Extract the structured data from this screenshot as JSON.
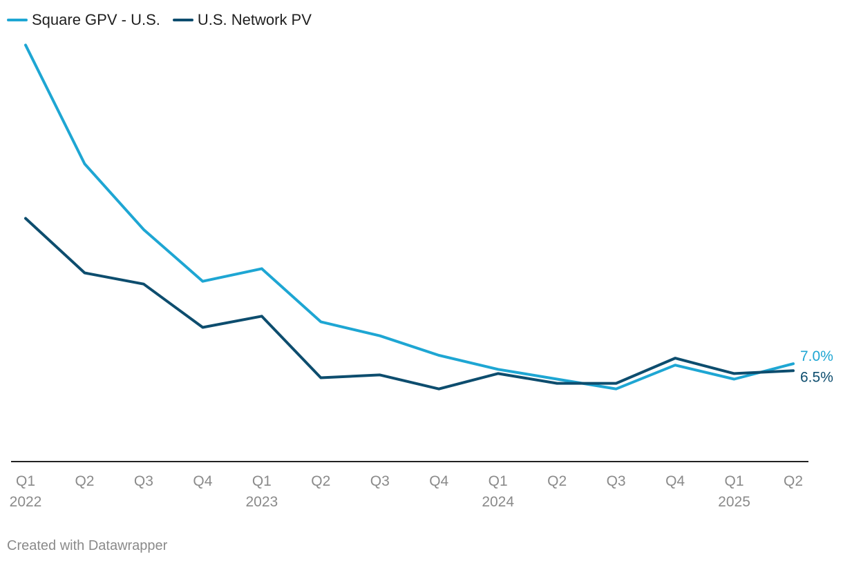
{
  "footer": {
    "text": "Created with Datawrapper"
  },
  "chart_data": {
    "type": "line",
    "title": "",
    "xlabel": "",
    "ylabel": "",
    "grid": false,
    "legend_position": "top-left",
    "categories": [
      "Q1",
      "Q2",
      "Q3",
      "Q4",
      "Q1",
      "Q2",
      "Q3",
      "Q4",
      "Q1",
      "Q2",
      "Q3",
      "Q4",
      "Q1",
      "Q2"
    ],
    "year_labels": [
      "2022",
      "",
      "",
      "",
      "2023",
      "",
      "",
      "",
      "2024",
      "",
      "",
      "",
      "2025",
      ""
    ],
    "series": [
      {
        "name": "Square GPV - U.S.",
        "color": "#1ea6d3",
        "values": [
          29.8,
          21.3,
          16.6,
          12.9,
          13.8,
          10.0,
          9.0,
          7.6,
          6.6,
          5.9,
          5.2,
          6.9,
          5.9,
          7.0
        ],
        "end_label": "7.0%"
      },
      {
        "name": "U.S. Network PV",
        "color": "#0d4d6e",
        "values": [
          17.4,
          13.5,
          12.7,
          9.6,
          10.4,
          6.0,
          6.2,
          5.2,
          6.3,
          5.6,
          5.6,
          7.4,
          6.3,
          6.5
        ],
        "end_label": "6.5%"
      }
    ],
    "ylim": [
      0,
      31
    ]
  }
}
